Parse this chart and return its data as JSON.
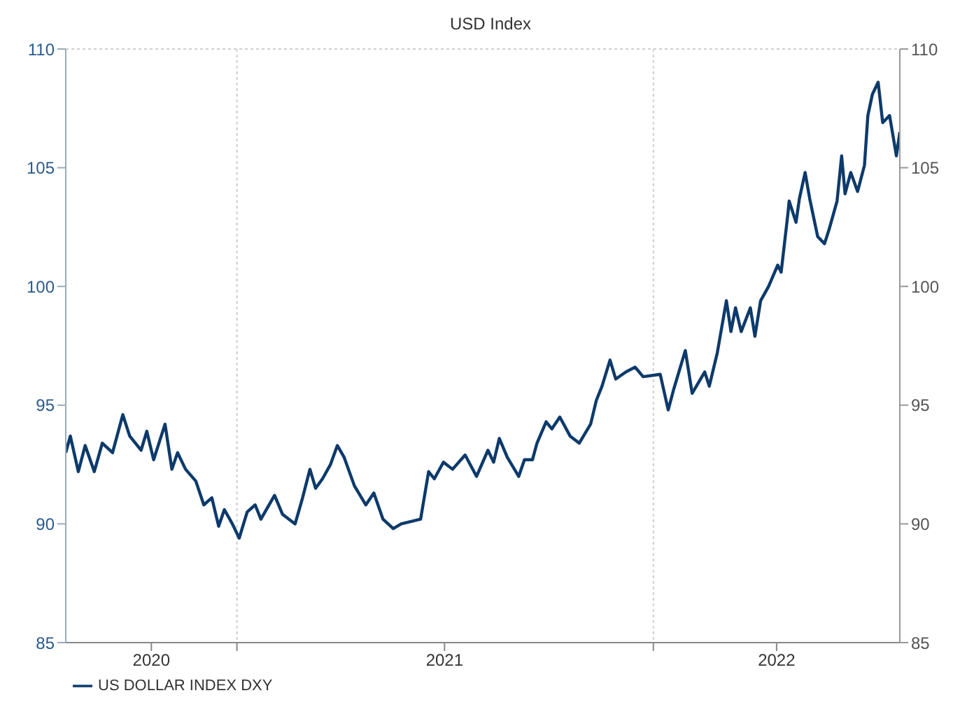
{
  "chart_data": {
    "type": "line",
    "title": "USD Index",
    "x": [
      "2020-08-04",
      "2020-08-08",
      "2020-08-15",
      "2020-08-21",
      "2020-08-29",
      "2020-09-05",
      "2020-09-14",
      "2020-09-23",
      "2020-09-29",
      "2020-10-09",
      "2020-10-14",
      "2020-10-20",
      "2020-10-30",
      "2020-11-05",
      "2020-11-10",
      "2020-11-17",
      "2020-11-26",
      "2020-12-03",
      "2020-12-10",
      "2020-12-16",
      "2020-12-21",
      "2020-12-28",
      "2021-01-03",
      "2021-01-10",
      "2021-01-17",
      "2021-01-22",
      "2021-02-03",
      "2021-02-10",
      "2021-02-21",
      "2021-02-27",
      "2021-03-06",
      "2021-03-11",
      "2021-03-17",
      "2021-03-24",
      "2021-03-30",
      "2021-04-05",
      "2021-04-14",
      "2021-04-24",
      "2021-05-01",
      "2021-05-09",
      "2021-05-18",
      "2021-05-25",
      "2021-06-11",
      "2021-06-18",
      "2021-06-23",
      "2021-07-01",
      "2021-07-09",
      "2021-07-20",
      "2021-07-30",
      "2021-08-09",
      "2021-08-14",
      "2021-08-19",
      "2021-08-26",
      "2021-09-05",
      "2021-09-10",
      "2021-09-17",
      "2021-09-21",
      "2021-09-29",
      "2021-10-04",
      "2021-10-11",
      "2021-10-20",
      "2021-10-28",
      "2021-11-07",
      "2021-11-12",
      "2021-11-17",
      "2021-11-24",
      "2021-11-29",
      "2021-12-08",
      "2021-12-16",
      "2021-12-23",
      "2022-01-07",
      "2022-01-14",
      "2022-01-19",
      "2022-01-29",
      "2022-02-04",
      "2022-02-15",
      "2022-02-19",
      "2022-02-26",
      "2022-03-06",
      "2022-03-10",
      "2022-03-14",
      "2022-03-19",
      "2022-03-27",
      "2022-03-31",
      "2022-04-05",
      "2022-04-12",
      "2022-04-20",
      "2022-04-23",
      "2022-04-29",
      "2022-04-30",
      "2022-05-06",
      "2022-05-09",
      "2022-05-14",
      "2022-05-18",
      "2022-05-25",
      "2022-05-31",
      "2022-06-04",
      "2022-06-11",
      "2022-06-15",
      "2022-06-18",
      "2022-06-23",
      "2022-06-29",
      "2022-07-05",
      "2022-07-08",
      "2022-07-12",
      "2022-07-17",
      "2022-07-21",
      "2022-07-27",
      "2022-08-02",
      "2022-08-05"
    ],
    "series": [
      {
        "name": "US DOLLAR INDEX DXY",
        "color": "#0d3a6b",
        "values": [
          93.0,
          93.7,
          92.2,
          93.3,
          92.2,
          93.4,
          93.0,
          94.6,
          93.7,
          93.1,
          93.9,
          92.7,
          94.2,
          92.3,
          93.0,
          92.3,
          91.8,
          90.8,
          91.1,
          89.9,
          90.6,
          90.0,
          89.4,
          90.5,
          90.8,
          90.2,
          91.2,
          90.4,
          90.0,
          91.0,
          92.3,
          91.5,
          91.9,
          92.5,
          93.3,
          92.8,
          91.6,
          90.8,
          91.3,
          90.2,
          89.8,
          90.0,
          90.2,
          92.2,
          91.9,
          92.6,
          92.3,
          92.9,
          92.0,
          93.1,
          92.6,
          93.6,
          92.8,
          92.0,
          92.7,
          92.7,
          93.4,
          94.3,
          94.0,
          94.5,
          93.7,
          93.4,
          94.2,
          95.2,
          95.8,
          96.9,
          96.1,
          96.4,
          96.6,
          96.2,
          96.3,
          94.8,
          95.7,
          97.3,
          95.5,
          96.4,
          95.8,
          97.2,
          99.4,
          98.1,
          99.1,
          98.1,
          99.1,
          97.9,
          99.4,
          100.0,
          100.9,
          100.6,
          103.1,
          103.6,
          102.7,
          103.7,
          104.8,
          103.7,
          102.1,
          101.8,
          102.4,
          103.6,
          105.5,
          103.9,
          104.8,
          104.0,
          105.1,
          107.2,
          108.1,
          108.6,
          106.9,
          107.2,
          105.5,
          106.5
        ]
      }
    ],
    "xlim": [
      "2020-08-04",
      "2022-08-05"
    ],
    "xticks": [
      {
        "value": "2020-10-18",
        "label": "2020"
      },
      {
        "value": "2021-01-01",
        "label": null
      },
      {
        "value": "2021-07-02",
        "label": "2021"
      },
      {
        "value": "2022-01-01",
        "label": null
      },
      {
        "value": "2022-04-19",
        "label": "2022"
      }
    ],
    "ylim": [
      85,
      110
    ],
    "yticks": [
      85,
      90,
      95,
      100,
      105,
      110
    ],
    "y2lim": [
      85,
      110
    ],
    "y2ticks": [
      85,
      90,
      95,
      100,
      105,
      110
    ],
    "grid": true,
    "legend": "bottom left"
  }
}
